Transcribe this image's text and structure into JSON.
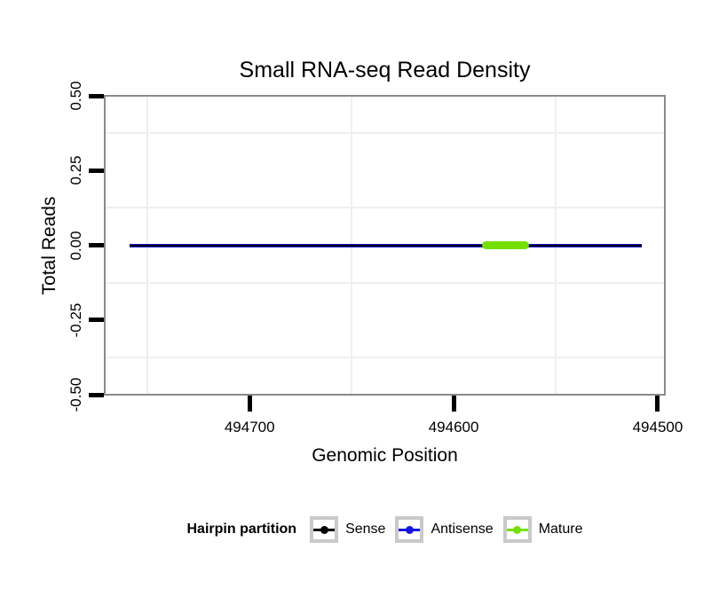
{
  "page": {
    "background": "#FFFFFF"
  },
  "chart_data": {
    "type": "line",
    "title": "Small RNA-seq Read Density",
    "xlabel": "Genomic Position",
    "ylabel": "Total Reads",
    "x_axis": {
      "reversed": true,
      "lim": [
        494496.5,
        494771
      ],
      "ticks": [
        {
          "value": 494700,
          "label": "494700"
        },
        {
          "value": 494600,
          "label": "494600"
        },
        {
          "value": 494500,
          "label": "494500"
        }
      ]
    },
    "y_axis": {
      "lim": [
        -0.5,
        0.5
      ],
      "ticks": [
        {
          "value": 0.5,
          "label": "0.50"
        },
        {
          "value": 0.25,
          "label": "0.25"
        },
        {
          "value": 0,
          "label": "0.00"
        },
        {
          "value": -0.25,
          "label": "-0.25"
        },
        {
          "value": -0.5,
          "label": "-0.50"
        }
      ]
    },
    "grid": {
      "minor_color": "#EFEFEF",
      "major_shown": false
    },
    "panel": {
      "border_color": "#8A8A8A",
      "background": "#FFFFFF"
    },
    "series": [
      {
        "name": "Antisense",
        "role": "antisense",
        "color": "#1515DD",
        "y": 0,
        "x0": 494759,
        "x1": 494508,
        "thickness_px": 4,
        "cap": "butt"
      },
      {
        "name": "Sense",
        "role": "sense",
        "color": "#000000",
        "y": 0,
        "x0": 494759,
        "x1": 494508,
        "thickness_px": 2,
        "cap": "butt"
      },
      {
        "name": "Mature",
        "role": "mature",
        "color": "#73E000",
        "y": 0,
        "x0": 494586,
        "x1": 494563,
        "thickness_px": 9,
        "cap": "round"
      }
    ],
    "legend": {
      "title": "Hairpin partition",
      "position": "bottom",
      "entries": [
        {
          "label": "Sense",
          "color": "#000000"
        },
        {
          "label": "Antisense",
          "color": "#1515DD"
        },
        {
          "label": "Mature",
          "color": "#73E000"
        }
      ]
    }
  }
}
